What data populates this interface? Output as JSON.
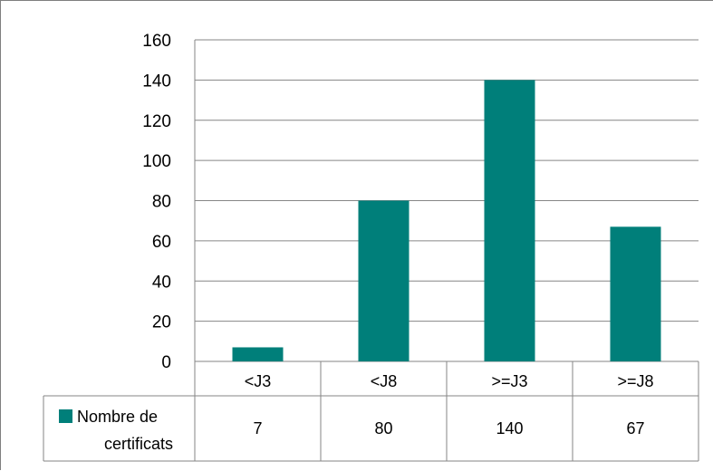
{
  "chart_data": {
    "type": "bar",
    "categories": [
      "<J3",
      "<J8",
      ">=J3",
      ">=J8"
    ],
    "series": [
      {
        "name": "Nombre de certificats",
        "values": [
          7,
          80,
          140,
          67
        ]
      }
    ],
    "legend_lines": [
      "Nombre de",
      "certificats"
    ],
    "ylim": [
      0,
      160
    ],
    "yticks": [
      0,
      20,
      40,
      60,
      80,
      100,
      120,
      140,
      160
    ],
    "grid": true,
    "data_table": true,
    "bar_color": "#007f7a"
  }
}
